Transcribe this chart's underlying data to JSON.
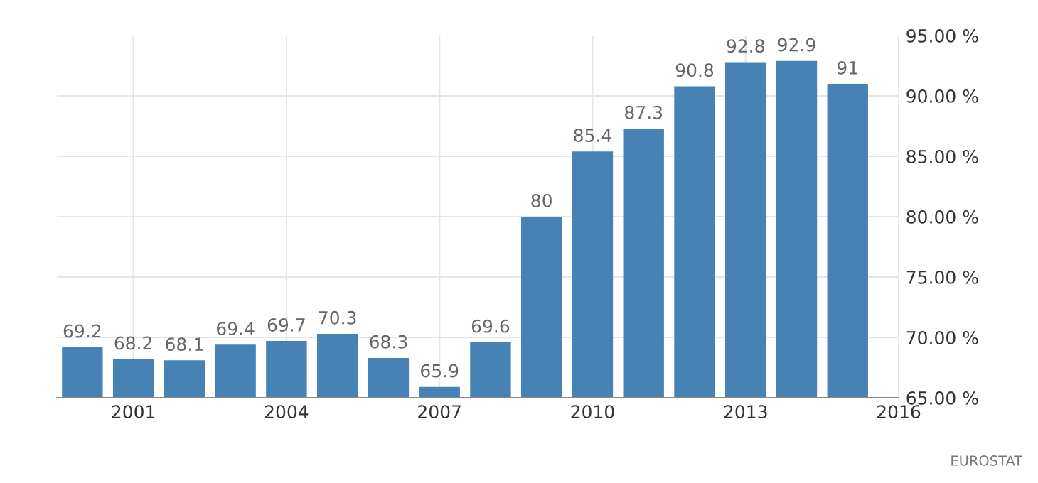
{
  "chart_data": {
    "type": "bar",
    "x": [
      2000,
      2001,
      2002,
      2003,
      2004,
      2005,
      2006,
      2007,
      2008,
      2009,
      2010,
      2011,
      2012,
      2013,
      2014,
      2015
    ],
    "values": [
      69.2,
      68.2,
      68.1,
      69.4,
      69.7,
      70.3,
      68.3,
      65.9,
      69.6,
      80,
      85.4,
      87.3,
      90.8,
      92.8,
      92.9,
      91
    ],
    "color": "#4682b4",
    "data_labels": true,
    "xlim": [
      1999.5,
      2016
    ],
    "xticks": [
      2001,
      2004,
      2007,
      2010,
      2013,
      2016
    ],
    "ylim": [
      65,
      95
    ],
    "yticks": [
      {
        "value": 65,
        "label": "65.00 %"
      },
      {
        "value": 70,
        "label": "70.00 %"
      },
      {
        "value": 75,
        "label": "75.00 %"
      },
      {
        "value": 80,
        "label": "80.00 %"
      },
      {
        "value": 85,
        "label": "85.00 %"
      },
      {
        "value": 90,
        "label": "90.00 %"
      },
      {
        "value": 95,
        "label": "95.00 %"
      }
    ],
    "grid": true,
    "annotations": [
      "EUROSTAT"
    ]
  }
}
